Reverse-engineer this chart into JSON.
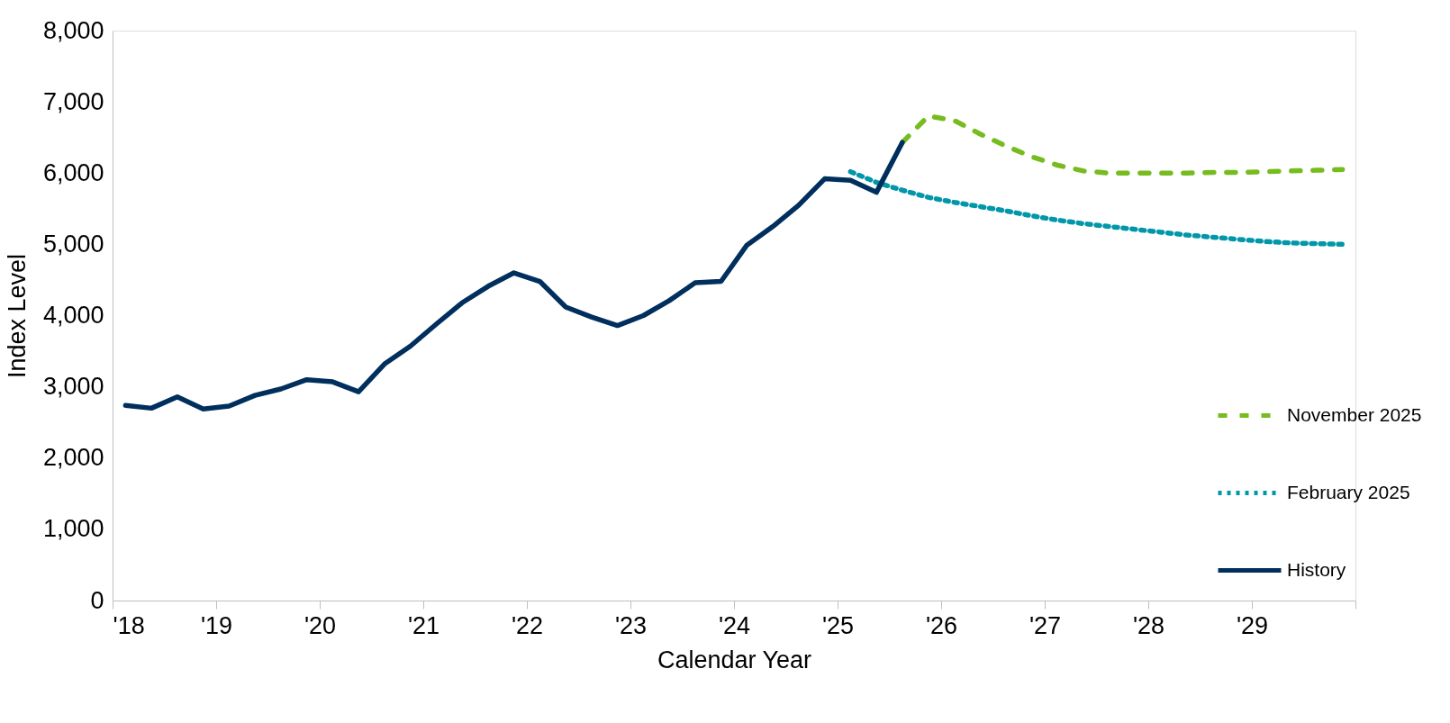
{
  "chart_data": {
    "type": "line",
    "xlabel": "Calendar Year",
    "ylabel": "Index Level",
    "xlim": [
      2018,
      2030
    ],
    "xticks": [
      {
        "value": 2018,
        "label": "'18"
      },
      {
        "value": 2019,
        "label": "'19"
      },
      {
        "value": 2020,
        "label": "'20"
      },
      {
        "value": 2021,
        "label": "'21"
      },
      {
        "value": 2022,
        "label": "'22"
      },
      {
        "value": 2023,
        "label": "'23"
      },
      {
        "value": 2024,
        "label": "'24"
      },
      {
        "value": 2025,
        "label": "'25"
      },
      {
        "value": 2026,
        "label": "'26"
      },
      {
        "value": 2027,
        "label": "'27"
      },
      {
        "value": 2028,
        "label": "'28"
      },
      {
        "value": 2029,
        "label": "'29"
      },
      {
        "value": 2030,
        "label": null
      }
    ],
    "ylim": [
      0,
      8000
    ],
    "yticks": [
      {
        "value": 0,
        "label": "0"
      },
      {
        "value": 1000,
        "label": "1,000"
      },
      {
        "value": 2000,
        "label": "2,000"
      },
      {
        "value": 3000,
        "label": "3,000"
      },
      {
        "value": 4000,
        "label": "4,000"
      },
      {
        "value": 5000,
        "label": "5,000"
      },
      {
        "value": 6000,
        "label": "6,000"
      },
      {
        "value": 7000,
        "label": "7,000"
      },
      {
        "value": 8000,
        "label": "8,000"
      }
    ],
    "grid": false,
    "legend": "right",
    "marker": "none",
    "series": [
      {
        "name": "November 2025",
        "color": "#77bc1f",
        "line_style": "dashed",
        "x": [
          2025.625,
          2025.875,
          2026.125,
          2026.375,
          2026.625,
          2026.875,
          2027.125,
          2027.375,
          2027.625,
          2027.875,
          2028.125,
          2028.375,
          2028.625,
          2028.875,
          2029.125,
          2029.375,
          2029.625,
          2029.875
        ],
        "values": [
          6430,
          6800,
          6740,
          6550,
          6380,
          6230,
          6110,
          6030,
          6000,
          6000,
          6000,
          6000,
          6010,
          6010,
          6020,
          6030,
          6040,
          6050
        ]
      },
      {
        "name": "February 2025",
        "color": "#0097a9",
        "line_style": "dotted",
        "x": [
          2025.125,
          2025.375,
          2025.625,
          2025.875,
          2026.125,
          2026.375,
          2026.625,
          2026.875,
          2027.125,
          2027.375,
          2027.625,
          2027.875,
          2028.125,
          2028.375,
          2028.625,
          2028.875,
          2029.125,
          2029.375,
          2029.625,
          2029.875
        ],
        "values": [
          6020,
          5870,
          5760,
          5660,
          5590,
          5530,
          5470,
          5400,
          5340,
          5290,
          5250,
          5210,
          5170,
          5130,
          5100,
          5070,
          5040,
          5020,
          5010,
          5000
        ]
      },
      {
        "name": "History",
        "color": "#012f5d",
        "line_style": "solid",
        "x": [
          2018.125,
          2018.375,
          2018.625,
          2018.875,
          2019.125,
          2019.375,
          2019.625,
          2019.875,
          2020.125,
          2020.375,
          2020.625,
          2020.875,
          2021.125,
          2021.375,
          2021.625,
          2021.875,
          2022.125,
          2022.375,
          2022.625,
          2022.875,
          2023.125,
          2023.375,
          2023.625,
          2023.875,
          2024.125,
          2024.375,
          2024.625,
          2024.875,
          2025.125,
          2025.375,
          2025.625
        ],
        "values": [
          2740,
          2700,
          2860,
          2690,
          2730,
          2880,
          2970,
          3100,
          3070,
          2930,
          3320,
          3570,
          3880,
          4180,
          4410,
          4600,
          4480,
          4120,
          3980,
          3860,
          4000,
          4210,
          4460,
          4480,
          4990,
          5250,
          5550,
          5920,
          5900,
          5730,
          6430
        ]
      }
    ]
  }
}
